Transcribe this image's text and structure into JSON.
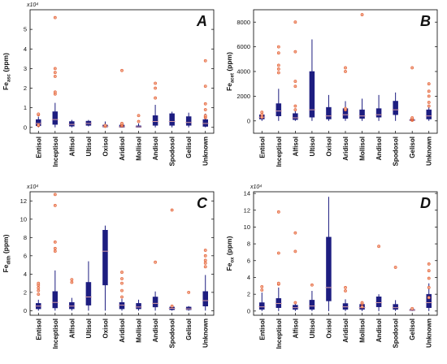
{
  "colors": {
    "box": "#1d1d80",
    "whisker": "#1d1d80",
    "median": "#d9a0a8",
    "outlier_stroke": "#e05a30",
    "outlier_fill": "#f3a98c",
    "axis": "#000000"
  },
  "chart_data": [
    {
      "type": "box",
      "panel_label": "A",
      "ylabel_main": "Fe",
      "ylabel_sub": "asc",
      "ylabel_unit": " (ppm)",
      "exponent_label": "x10⁴",
      "ylim": [
        -0.3,
        6
      ],
      "yticks": [
        0,
        1,
        2,
        3,
        4,
        5
      ],
      "categories": [
        "Entisol",
        "Inceptisol",
        "Alfisol",
        "Ultisol",
        "Oxisol",
        "Aridisol",
        "Mollisol",
        "Andisol",
        "Spodosol",
        "Gelisol",
        "Unknown"
      ],
      "boxes": [
        {
          "min": 0.0,
          "q1": 0.08,
          "median": 0.2,
          "q3": 0.4,
          "max": 0.55,
          "outliers": [
            0.65,
            0.68,
            0.1,
            0.12
          ]
        },
        {
          "min": 0.0,
          "q1": 0.15,
          "median": 0.4,
          "q3": 0.8,
          "max": 1.25,
          "outliers": [
            1.7,
            1.8,
            2.6,
            2.8,
            3.0,
            5.6
          ]
        },
        {
          "min": 0.0,
          "q1": 0.06,
          "median": 0.15,
          "q3": 0.3,
          "max": 0.38,
          "outliers": []
        },
        {
          "min": 0.05,
          "q1": 0.1,
          "median": 0.2,
          "q3": 0.32,
          "max": 0.38,
          "outliers": []
        },
        {
          "min": 0.0,
          "q1": 0.02,
          "median": 0.06,
          "q3": 0.12,
          "max": 0.3,
          "outliers": [
            0.05,
            0.1
          ]
        },
        {
          "min": 0.0,
          "q1": 0.0,
          "median": 0.03,
          "q3": 0.12,
          "max": 0.22,
          "outliers": [
            0.08,
            0.1,
            0.15,
            0.2,
            2.9
          ]
        },
        {
          "min": 0.0,
          "q1": 0.0,
          "median": 0.03,
          "q3": 0.08,
          "max": 0.2,
          "outliers": [
            0.3,
            0.6
          ]
        },
        {
          "min": 0.0,
          "q1": 0.1,
          "median": 0.3,
          "q3": 0.6,
          "max": 1.15,
          "outliers": [
            1.5,
            2.0,
            2.25
          ]
        },
        {
          "min": 0.0,
          "q1": 0.1,
          "median": 0.3,
          "q3": 0.7,
          "max": 0.8,
          "outliers": []
        },
        {
          "min": 0.0,
          "q1": 0.1,
          "median": 0.25,
          "q3": 0.55,
          "max": 0.75,
          "outliers": []
        },
        {
          "min": 0.0,
          "q1": 0.05,
          "median": 0.2,
          "q3": 0.4,
          "max": 0.7,
          "outliers": [
            0.5,
            0.55,
            0.6,
            0.9,
            1.2,
            2.1,
            3.4
          ]
        }
      ]
    },
    {
      "type": "box",
      "panel_label": "B",
      "ylabel_main": "Fe",
      "ylabel_sub": "acet",
      "ylabel_unit": " (ppm)",
      "exponent_label": "",
      "ylim": [
        -1000,
        9000
      ],
      "yticks": [
        0,
        2000,
        4000,
        6000,
        8000
      ],
      "categories": [
        "Entisol",
        "Inceptisol",
        "Alfisol",
        "Ultisol",
        "Oxisol",
        "Aridisol",
        "Mollisol",
        "Andisol",
        "Spodosol",
        "Gelisol",
        "Unknown"
      ],
      "boxes": [
        {
          "min": 0,
          "q1": 150,
          "median": 300,
          "q3": 500,
          "max": 600,
          "outliers": [
            300,
            500,
            700
          ]
        },
        {
          "min": 0,
          "q1": 400,
          "median": 800,
          "q3": 1400,
          "max": 2600,
          "outliers": [
            3900,
            4200,
            4500,
            5500,
            6000
          ]
        },
        {
          "min": 0,
          "q1": 100,
          "median": 250,
          "q3": 600,
          "max": 900,
          "outliers": [
            900,
            1200,
            2800,
            3200,
            5600,
            8000
          ]
        },
        {
          "min": 0,
          "q1": 300,
          "median": 900,
          "q3": 4000,
          "max": 6600,
          "outliers": []
        },
        {
          "min": 0,
          "q1": 150,
          "median": 400,
          "q3": 1100,
          "max": 2100,
          "outliers": []
        },
        {
          "min": 0,
          "q1": 200,
          "median": 500,
          "q3": 1000,
          "max": 1600,
          "outliers": [
            900,
            1000,
            4000,
            4300
          ]
        },
        {
          "min": 0,
          "q1": 200,
          "median": 400,
          "q3": 900,
          "max": 1800,
          "outliers": [
            8600
          ]
        },
        {
          "min": 0,
          "q1": 300,
          "median": 500,
          "q3": 1000,
          "max": 2100,
          "outliers": []
        },
        {
          "min": 0,
          "q1": 500,
          "median": 900,
          "q3": 1600,
          "max": 2300,
          "outliers": []
        },
        {
          "min": 0,
          "q1": 20,
          "median": 60,
          "q3": 120,
          "max": 200,
          "outliers": [
            50,
            100,
            150,
            200,
            250,
            4300
          ]
        },
        {
          "min": 0,
          "q1": 150,
          "median": 400,
          "q3": 900,
          "max": 1300,
          "outliers": [
            1200,
            1500,
            2000,
            2400,
            3000
          ]
        }
      ]
    },
    {
      "type": "box",
      "panel_label": "C",
      "ylabel_main": "Fe",
      "ylabel_sub": "dith",
      "ylabel_unit": " (ppm)",
      "exponent_label": "x10⁴",
      "ylim": [
        -0.5,
        13
      ],
      "yticks": [
        0,
        2,
        4,
        6,
        8,
        10,
        12
      ],
      "categories": [
        "Entisol",
        "Inceptisol",
        "Alfisol",
        "Ultisol",
        "Oxisol",
        "Aridisol",
        "Mollisol",
        "Andisol",
        "Spodosol",
        "Gelisol",
        "Unknown"
      ],
      "boxes": [
        {
          "min": 0.0,
          "q1": 0.2,
          "median": 0.5,
          "q3": 0.8,
          "max": 1.2,
          "outliers": [
            1.8,
            2.2,
            2.5,
            2.8,
            3.0
          ]
        },
        {
          "min": 0.0,
          "q1": 0.3,
          "median": 0.9,
          "q3": 2.1,
          "max": 4.4,
          "outliers": [
            6.5,
            6.8,
            7.5,
            11.5,
            12.7
          ]
        },
        {
          "min": 0.0,
          "q1": 0.2,
          "median": 0.5,
          "q3": 0.9,
          "max": 1.4,
          "outliers": [
            3.1,
            3.4
          ]
        },
        {
          "min": 0.0,
          "q1": 0.6,
          "median": 1.5,
          "q3": 3.1,
          "max": 5.4,
          "outliers": []
        },
        {
          "min": 0.0,
          "q1": 2.8,
          "median": 6.5,
          "q3": 8.8,
          "max": 9.3,
          "outliers": []
        },
        {
          "min": 0.0,
          "q1": 0.2,
          "median": 0.6,
          "q3": 0.9,
          "max": 1.3,
          "outliers": [
            1.5,
            2.2,
            3.0,
            3.5,
            4.2
          ]
        },
        {
          "min": 0.0,
          "q1": 0.2,
          "median": 0.4,
          "q3": 0.8,
          "max": 1.2,
          "outliers": []
        },
        {
          "min": 0.0,
          "q1": 0.4,
          "median": 0.8,
          "q3": 1.5,
          "max": 2.1,
          "outliers": [
            5.3
          ]
        },
        {
          "min": 0.0,
          "q1": 0.1,
          "median": 0.25,
          "q3": 0.4,
          "max": 0.6,
          "outliers": [
            0.5,
            11.0
          ]
        },
        {
          "min": 0.0,
          "q1": 0.1,
          "median": 0.2,
          "q3": 0.4,
          "max": 0.5,
          "outliers": [
            2.0
          ]
        },
        {
          "min": 0.0,
          "q1": 0.5,
          "median": 1.1,
          "q3": 2.1,
          "max": 3.9,
          "outliers": [
            4.8,
            5.2,
            5.5,
            6.0,
            6.6
          ]
        }
      ]
    },
    {
      "type": "box",
      "panel_label": "D",
      "ylabel_main": "Fe",
      "ylabel_sub": "ox",
      "ylabel_unit": " (ppm)",
      "exponent_label": "x10⁴",
      "ylim": [
        -0.5,
        14.2
      ],
      "yticks": [
        0,
        2,
        4,
        6,
        8,
        10,
        12,
        14
      ],
      "categories": [
        "Entisol",
        "Inceptisol",
        "Alfisol",
        "Ultisol",
        "Oxisol",
        "Aridisol",
        "Mollisol",
        "Andisol",
        "Spodosol",
        "Gelisol",
        "Unknown"
      ],
      "boxes": [
        {
          "min": 0.0,
          "q1": 0.2,
          "median": 0.5,
          "q3": 1.0,
          "max": 2.2,
          "outliers": [
            2.5,
            2.9
          ]
        },
        {
          "min": 0.0,
          "q1": 0.4,
          "median": 0.9,
          "q3": 1.5,
          "max": 2.8,
          "outliers": [
            3.2,
            3.3,
            6.9,
            11.8
          ]
        },
        {
          "min": 0.0,
          "q1": 0.2,
          "median": 0.4,
          "q3": 0.7,
          "max": 1.0,
          "outliers": [
            1.0,
            7.1,
            9.3
          ]
        },
        {
          "min": 0.0,
          "q1": 0.2,
          "median": 0.6,
          "q3": 1.3,
          "max": 2.4,
          "outliers": [
            3.1
          ]
        },
        {
          "min": 0.0,
          "q1": 1.2,
          "median": 2.8,
          "q3": 8.8,
          "max": 13.6,
          "outliers": []
        },
        {
          "min": 0.0,
          "q1": 0.2,
          "median": 0.5,
          "q3": 0.9,
          "max": 1.4,
          "outliers": [
            2.4,
            2.8
          ]
        },
        {
          "min": 0.0,
          "q1": 0.2,
          "median": 0.4,
          "q3": 0.8,
          "max": 1.1,
          "outliers": [
            0.5,
            0.9,
            1.0
          ]
        },
        {
          "min": 0.0,
          "q1": 0.5,
          "median": 1.0,
          "q3": 1.7,
          "max": 2.0,
          "outliers": [
            7.7
          ]
        },
        {
          "min": 0.0,
          "q1": 0.2,
          "median": 0.4,
          "q3": 0.8,
          "max": 1.3,
          "outliers": [
            5.2
          ]
        },
        {
          "min": 0.0,
          "q1": 0.05,
          "median": 0.1,
          "q3": 0.2,
          "max": 0.3,
          "outliers": [
            0.3
          ]
        },
        {
          "min": 0.0,
          "q1": 0.4,
          "median": 1.0,
          "q3": 2.0,
          "max": 3.3,
          "outliers": [
            3.9,
            4.8,
            5.6,
            2.8,
            1.6
          ]
        }
      ]
    }
  ]
}
